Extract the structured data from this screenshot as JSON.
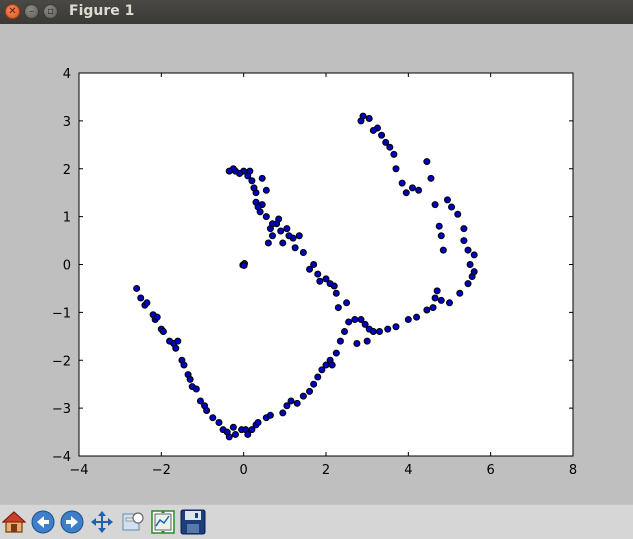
{
  "window": {
    "title": "Figure 1"
  },
  "toolbar": {
    "tools": [
      {
        "name": "home-icon"
      },
      {
        "name": "back-arrow-icon"
      },
      {
        "name": "forward-arrow-icon"
      },
      {
        "name": "pan-move-icon"
      },
      {
        "name": "zoom-rect-icon"
      },
      {
        "name": "subplot-config-icon"
      },
      {
        "name": "save-disk-icon"
      }
    ]
  },
  "colors": {
    "marker_fill": "#0000bf",
    "marker_edge": "#000000",
    "axes_bg": "#ffffff",
    "figure_bg": "#bfbfbf"
  },
  "chart_data": {
    "type": "scatter",
    "xlim": [
      -4,
      8
    ],
    "ylim": [
      -4,
      4
    ],
    "xticks": [
      "−4",
      "−2",
      "0",
      "2",
      "4",
      "6",
      "8"
    ],
    "yticks": [
      "−4",
      "−3",
      "−2",
      "−1",
      "0",
      "1",
      "2",
      "3",
      "4"
    ],
    "grid": false,
    "points": [
      [
        -2.6,
        -0.5
      ],
      [
        -2.5,
        -0.7
      ],
      [
        -2.4,
        -0.85
      ],
      [
        -2.35,
        -0.8
      ],
      [
        -2.2,
        -1.05
      ],
      [
        -2.15,
        -1.15
      ],
      [
        -2.1,
        -1.1
      ],
      [
        -2.0,
        -1.35
      ],
      [
        -1.95,
        -1.4
      ],
      [
        -1.8,
        -1.6
      ],
      [
        -1.7,
        -1.65
      ],
      [
        -1.65,
        -1.75
      ],
      [
        -1.6,
        -1.6
      ],
      [
        -1.5,
        -2.0
      ],
      [
        -1.45,
        -2.1
      ],
      [
        -1.35,
        -2.3
      ],
      [
        -1.3,
        -2.4
      ],
      [
        -1.25,
        -2.55
      ],
      [
        -1.15,
        -2.6
      ],
      [
        -1.05,
        -2.85
      ],
      [
        -0.95,
        -2.95
      ],
      [
        -0.9,
        -3.05
      ],
      [
        -0.75,
        -3.2
      ],
      [
        -0.6,
        -3.3
      ],
      [
        -0.5,
        -3.45
      ],
      [
        -0.4,
        -3.5
      ],
      [
        -0.35,
        -3.6
      ],
      [
        -0.25,
        -3.4
      ],
      [
        -0.2,
        -3.55
      ],
      [
        -0.05,
        -3.45
      ],
      [
        0.05,
        -3.45
      ],
      [
        0.1,
        -3.55
      ],
      [
        0.2,
        -3.45
      ],
      [
        0.3,
        -3.35
      ],
      [
        0.35,
        -3.3
      ],
      [
        0.55,
        -3.2
      ],
      [
        0.65,
        -3.15
      ],
      [
        0.95,
        -3.1
      ],
      [
        1.05,
        -2.95
      ],
      [
        1.15,
        -2.85
      ],
      [
        1.3,
        -2.9
      ],
      [
        1.45,
        -2.75
      ],
      [
        1.6,
        -2.65
      ],
      [
        1.7,
        -2.5
      ],
      [
        1.8,
        -2.35
      ],
      [
        1.9,
        -2.2
      ],
      [
        2.0,
        -2.1
      ],
      [
        2.1,
        -2.0
      ],
      [
        2.15,
        -2.1
      ],
      [
        2.25,
        -1.85
      ],
      [
        2.35,
        -1.6
      ],
      [
        2.45,
        -1.4
      ],
      [
        2.55,
        -1.2
      ],
      [
        2.7,
        -1.15
      ],
      [
        2.75,
        -1.65
      ],
      [
        2.85,
        -1.15
      ],
      [
        2.95,
        -1.25
      ],
      [
        3.0,
        -1.6
      ],
      [
        3.05,
        -1.35
      ],
      [
        3.15,
        -1.4
      ],
      [
        3.3,
        -1.4
      ],
      [
        3.5,
        -1.35
      ],
      [
        3.7,
        -1.3
      ],
      [
        4.0,
        -1.15
      ],
      [
        4.2,
        -1.1
      ],
      [
        4.45,
        -0.95
      ],
      [
        4.6,
        -0.9
      ],
      [
        4.65,
        -0.7
      ],
      [
        4.7,
        -0.55
      ],
      [
        4.8,
        -0.75
      ],
      [
        5.0,
        -0.8
      ],
      [
        5.25,
        -0.6
      ],
      [
        5.45,
        -0.4
      ],
      [
        5.55,
        -0.25
      ],
      [
        5.6,
        -0.15
      ],
      [
        5.6,
        0.2
      ],
      [
        5.5,
        0.0
      ],
      [
        5.45,
        0.3
      ],
      [
        5.35,
        0.5
      ],
      [
        5.35,
        0.75
      ],
      [
        5.2,
        1.05
      ],
      [
        5.05,
        1.2
      ],
      [
        4.95,
        1.35
      ],
      [
        4.85,
        0.3
      ],
      [
        4.8,
        0.6
      ],
      [
        4.75,
        0.8
      ],
      [
        4.65,
        1.25
      ],
      [
        4.55,
        1.8
      ],
      [
        4.45,
        2.15
      ],
      [
        4.25,
        1.55
      ],
      [
        4.1,
        1.6
      ],
      [
        3.95,
        1.5
      ],
      [
        3.85,
        1.7
      ],
      [
        3.7,
        2.0
      ],
      [
        3.65,
        2.3
      ],
      [
        3.55,
        2.45
      ],
      [
        3.45,
        2.55
      ],
      [
        3.35,
        2.7
      ],
      [
        3.25,
        2.85
      ],
      [
        3.15,
        2.8
      ],
      [
        3.05,
        3.05
      ],
      [
        2.9,
        3.1
      ],
      [
        2.85,
        3.0
      ],
      [
        2.5,
        -0.8
      ],
      [
        2.3,
        -0.9
      ],
      [
        2.25,
        -0.6
      ],
      [
        2.2,
        -0.45
      ],
      [
        2.1,
        -0.4
      ],
      [
        2.0,
        -0.3
      ],
      [
        1.85,
        -0.35
      ],
      [
        1.8,
        -0.2
      ],
      [
        1.7,
        0.0
      ],
      [
        1.6,
        -0.1
      ],
      [
        1.45,
        0.25
      ],
      [
        1.35,
        0.6
      ],
      [
        1.25,
        0.35
      ],
      [
        1.2,
        0.55
      ],
      [
        1.1,
        0.6
      ],
      [
        1.05,
        0.75
      ],
      [
        0.95,
        0.45
      ],
      [
        0.9,
        0.7
      ],
      [
        0.85,
        0.95
      ],
      [
        0.8,
        0.85
      ],
      [
        0.7,
        0.6
      ],
      [
        0.7,
        0.85
      ],
      [
        0.65,
        0.75
      ],
      [
        0.6,
        0.45
      ],
      [
        0.55,
        1.0
      ],
      [
        0.45,
        1.25
      ],
      [
        0.4,
        1.1
      ],
      [
        0.35,
        1.2
      ],
      [
        0.3,
        1.3
      ],
      [
        0.3,
        1.5
      ],
      [
        0.25,
        1.6
      ],
      [
        0.2,
        1.75
      ],
      [
        0.15,
        1.95
      ],
      [
        0.1,
        1.85
      ],
      [
        0.0,
        1.95
      ],
      [
        -0.1,
        1.9
      ],
      [
        -0.2,
        1.95
      ],
      [
        -0.25,
        2.0
      ],
      [
        -0.35,
        1.95
      ],
      [
        0.45,
        1.8
      ],
      [
        0.55,
        1.55
      ],
      [
        0.0,
        0.0
      ],
      [
        0.02,
        0.02
      ],
      [
        -0.02,
        -0.01
      ],
      [
        0.01,
        -0.02
      ]
    ]
  }
}
